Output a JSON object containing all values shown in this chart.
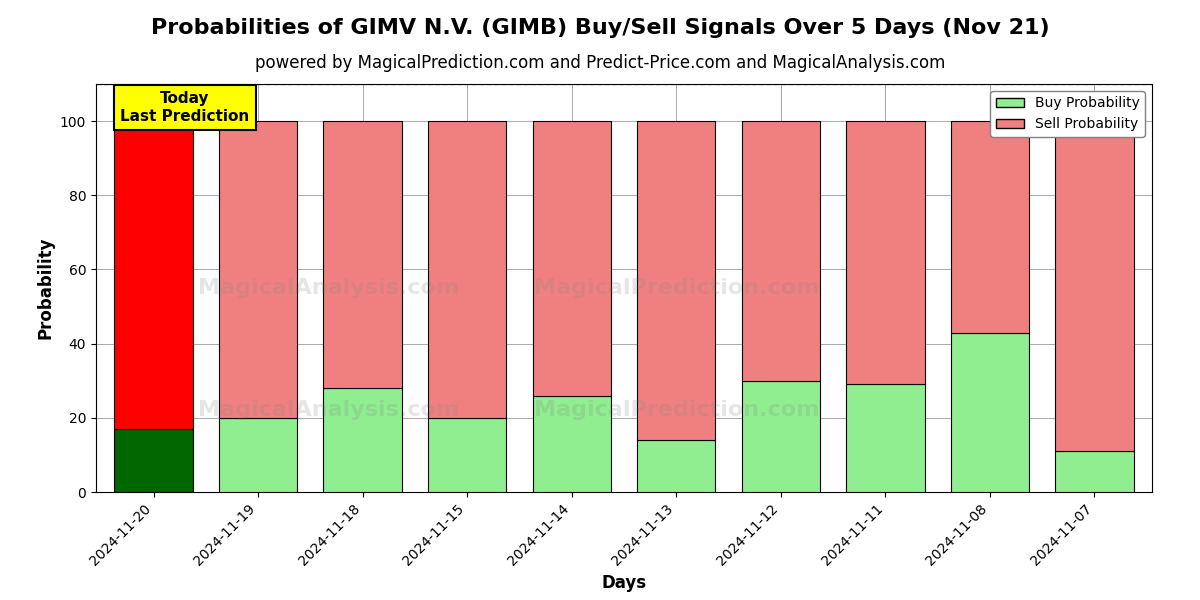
{
  "title": "Probabilities of GIMV N.V. (GIMB) Buy/Sell Signals Over 5 Days (Nov 21)",
  "subtitle": "powered by MagicalPrediction.com and Predict-Price.com and MagicalAnalysis.com",
  "xlabel": "Days",
  "ylabel": "Probability",
  "categories": [
    "2024-11-20",
    "2024-11-19",
    "2024-11-18",
    "2024-11-15",
    "2024-11-14",
    "2024-11-13",
    "2024-11-12",
    "2024-11-11",
    "2024-11-08",
    "2024-11-07"
  ],
  "buy_values": [
    17,
    20,
    28,
    20,
    26,
    14,
    30,
    29,
    43,
    11
  ],
  "sell_values": [
    83,
    80,
    72,
    80,
    74,
    86,
    70,
    71,
    57,
    89
  ],
  "buy_color_today": "#006600",
  "sell_color_today": "#ff0000",
  "buy_color_normal": "#90EE90",
  "sell_color_normal": "#F08080",
  "bar_edge_color": "#000000",
  "ylim": [
    0,
    110
  ],
  "yticks": [
    0,
    20,
    40,
    60,
    80,
    100
  ],
  "dashed_line_y": 110,
  "watermark_line1": "MagicalAnalysis.com",
  "watermark_line2": "MagicalPrediction.com",
  "legend_buy_label": "Buy Probability",
  "legend_sell_label": "Sell Probability",
  "today_label": "Today\nLast Prediction",
  "today_index": 0,
  "title_fontsize": 16,
  "subtitle_fontsize": 12,
  "background_color": "#ffffff",
  "grid_color": "#aaaaaa"
}
